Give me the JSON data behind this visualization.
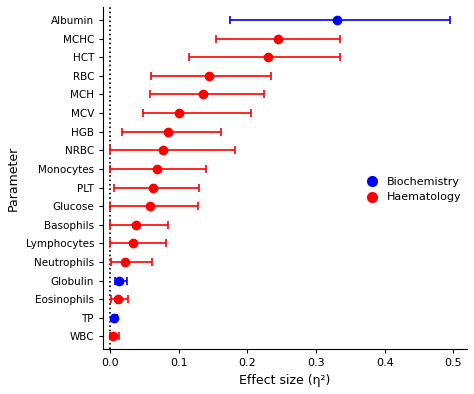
{
  "parameters": [
    "Albumin",
    "MCHC",
    "HCT",
    "RBC",
    "MCH",
    "MCV",
    "HGB",
    "NRBC",
    "Monocytes",
    "PLT",
    "Glucose",
    "Basophils",
    "Lymphocytes",
    "Neutrophils",
    "Globulin",
    "Eosinophils",
    "TP",
    "WBC"
  ],
  "categories": [
    "Biochemistry",
    "Haematology",
    "Haematology",
    "Haematology",
    "Haematology",
    "Haematology",
    "Haematology",
    "Haematology",
    "Haematology",
    "Haematology",
    "Haematology",
    "Haematology",
    "Haematology",
    "Haematology",
    "Biochemistry",
    "Haematology",
    "Biochemistry",
    "Haematology"
  ],
  "es": [
    0.33,
    0.245,
    0.23,
    0.145,
    0.135,
    0.1,
    0.085,
    0.078,
    0.068,
    0.063,
    0.058,
    0.038,
    0.033,
    0.022,
    0.013,
    0.012,
    0.006,
    0.005
  ],
  "ci_low": [
    0.175,
    0.155,
    0.115,
    0.06,
    0.058,
    0.048,
    0.018,
    0.0,
    0.0,
    0.006,
    0.0,
    0.0,
    0.0,
    0.002,
    0.007,
    0.002,
    0.005,
    0.0
  ],
  "ci_high": [
    0.495,
    0.335,
    0.335,
    0.235,
    0.225,
    0.205,
    0.162,
    0.182,
    0.14,
    0.13,
    0.128,
    0.085,
    0.082,
    0.062,
    0.025,
    0.027,
    0.01,
    0.013
  ],
  "bio_color": "#0000ff",
  "haem_color": "#ff0000",
  "xlabel": "Effect size (η²)",
  "ylabel": "Parameter",
  "xlim": [
    -0.01,
    0.52
  ],
  "xticks": [
    0.0,
    0.1,
    0.2,
    0.3,
    0.4,
    0.5
  ],
  "xtick_labels": [
    "0.0",
    "0.1",
    "0.2",
    "0.3",
    "0.4",
    "0.5"
  ],
  "marker_size": 6,
  "capsize": 3,
  "legend_labels": [
    "Biochemistry",
    "Haematology"
  ],
  "vline_x": 0.0,
  "figwidth": 4.74,
  "figheight": 3.94,
  "dpi": 100
}
